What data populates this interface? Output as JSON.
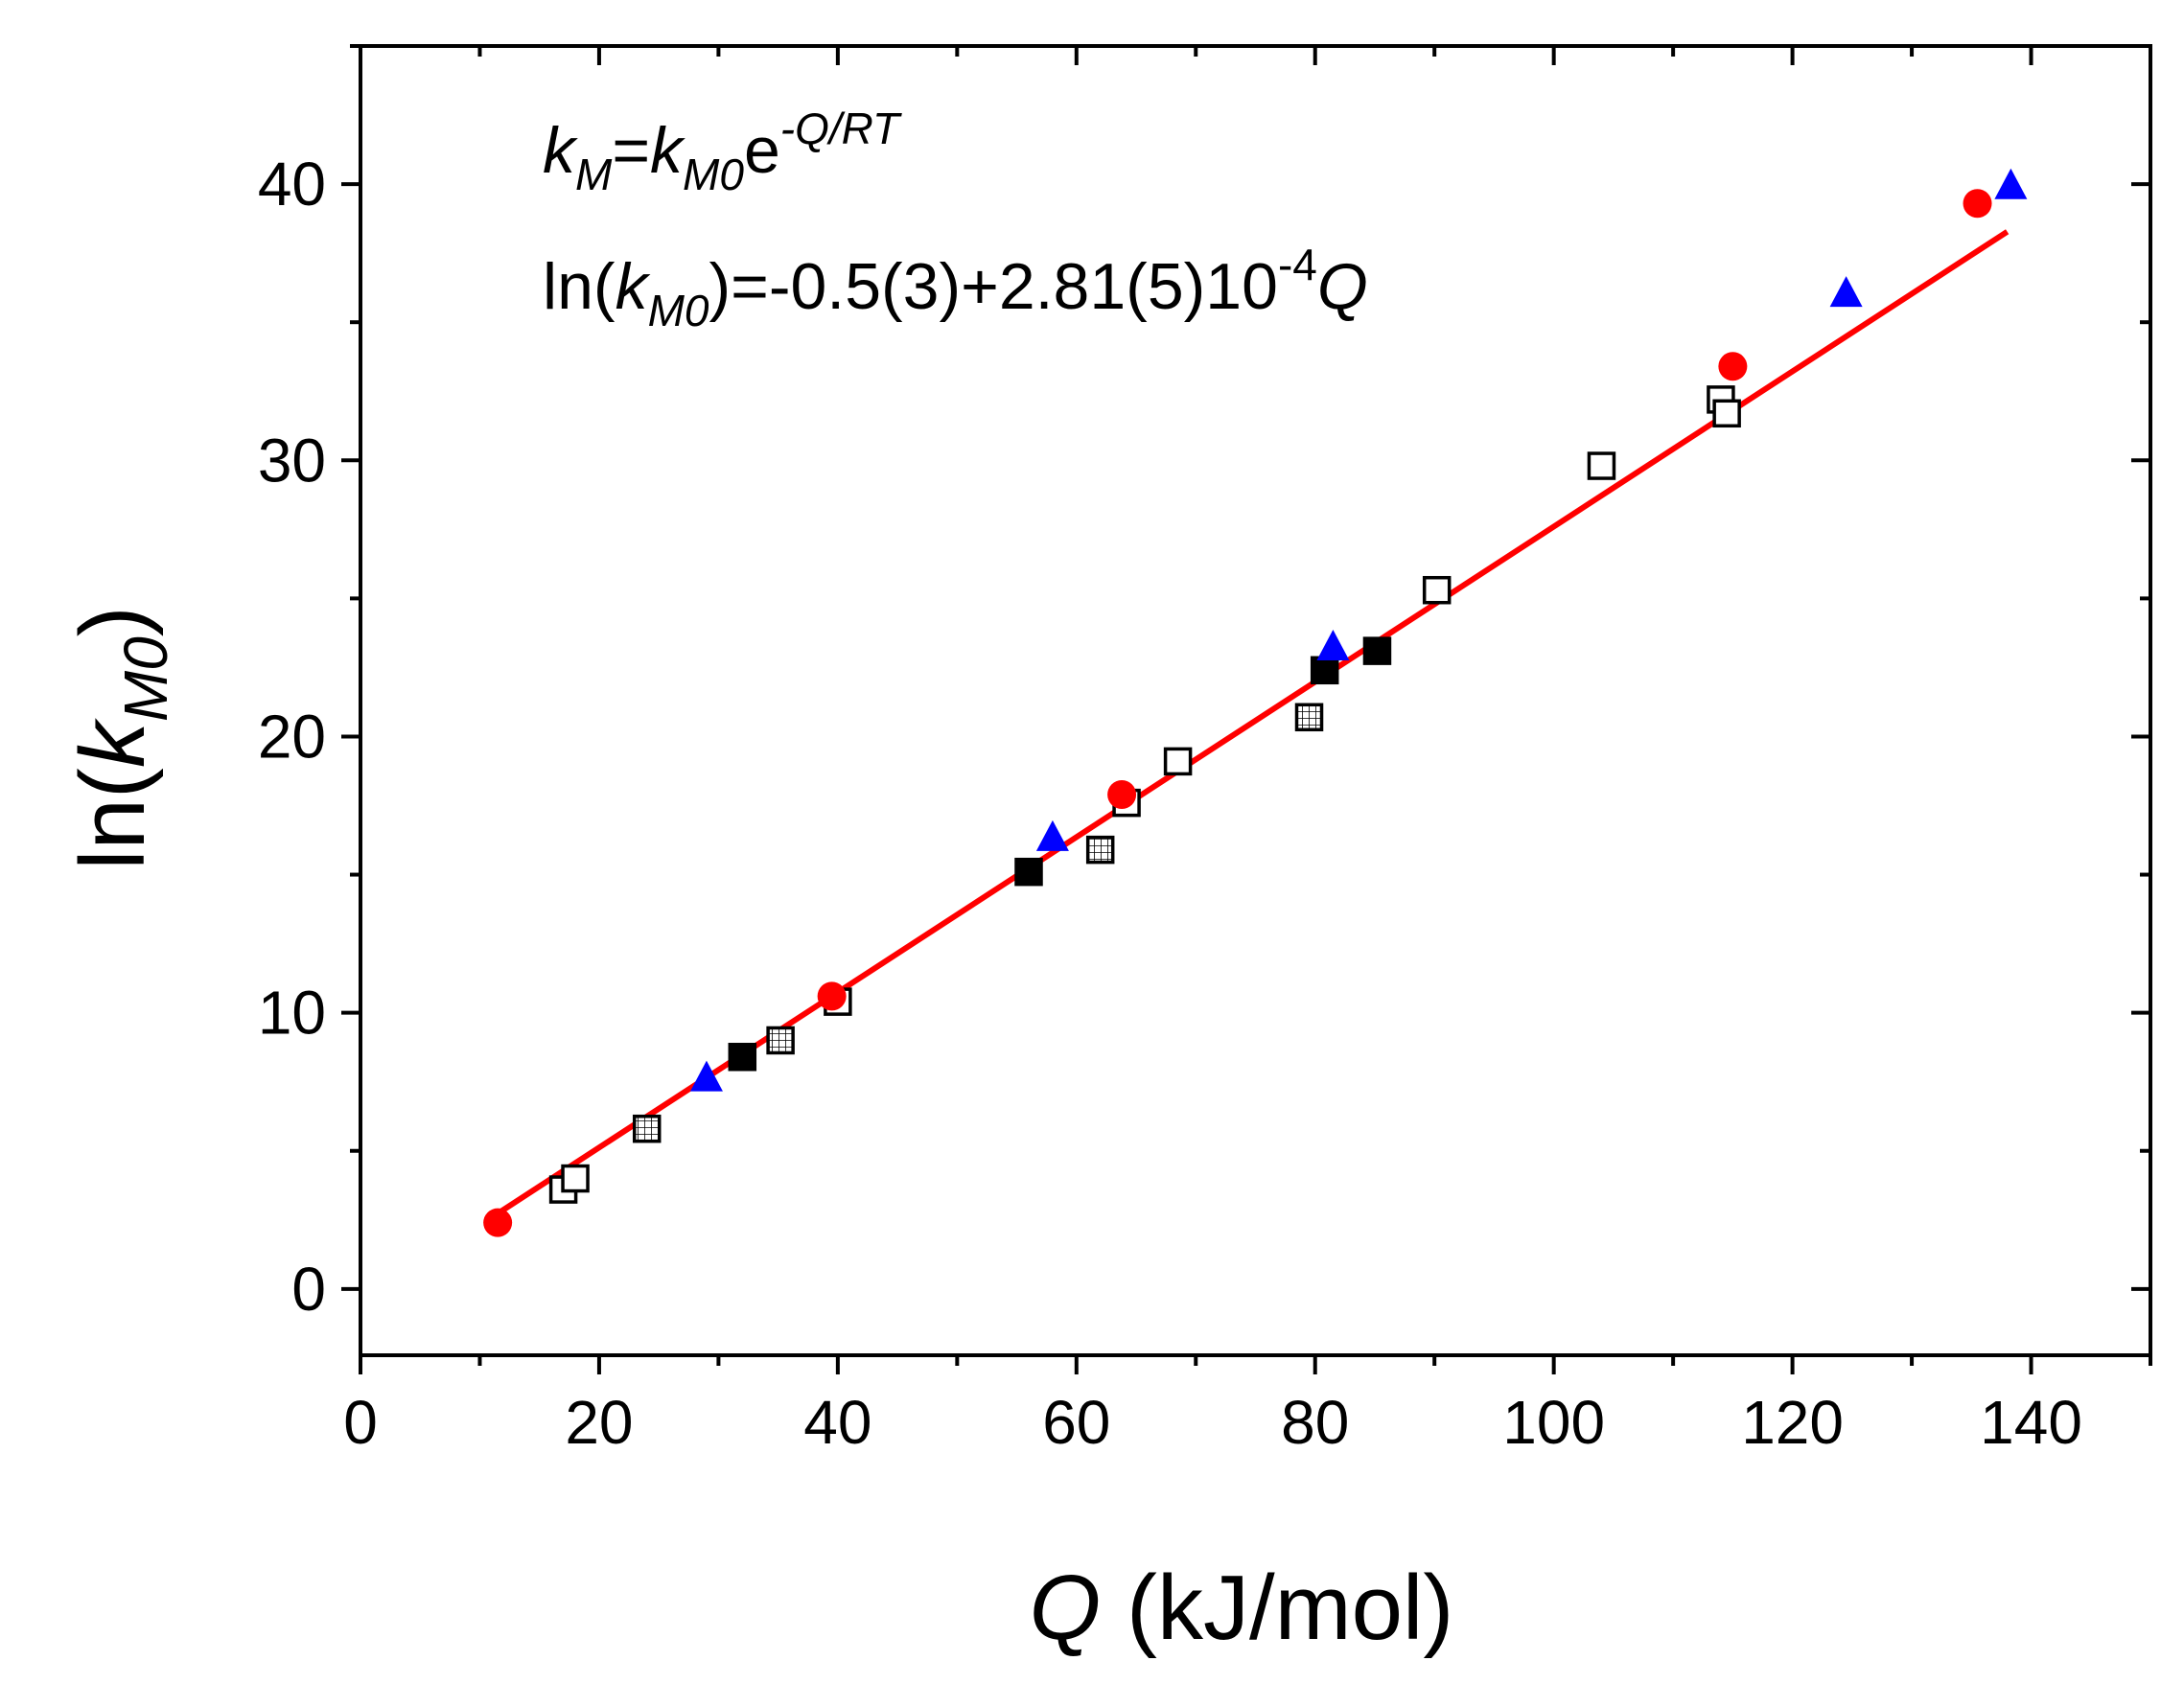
{
  "chart_data": {
    "type": "scatter",
    "title": "",
    "xlabel": {
      "italic": "Q",
      "rest": " (kJ/mol)"
    },
    "ylabel": {
      "prefix": "ln(",
      "italic": "k",
      "sub": "M0",
      "suffix": ")"
    },
    "xlim": [
      0,
      150
    ],
    "ylim": [
      -2.4,
      45
    ],
    "xticks": [
      0,
      20,
      40,
      60,
      80,
      100,
      120,
      140
    ],
    "yticks": [
      0,
      10,
      20,
      30,
      40
    ],
    "annotations": {
      "line1": {
        "k1": "k",
        "sub1": "M",
        "eq": "=",
        "k2": "k",
        "sub2": "M0",
        "e": "e",
        "exp": "-Q/RT"
      },
      "line2": {
        "prefix": "ln(",
        "k": "k",
        "sub": "M0",
        "mid": ")=-0.5(3)+2.81(5)10",
        "exp": "-4",
        "q": "Q"
      }
    },
    "fit": {
      "intercept": -0.5,
      "slope": 0.281,
      "x_range": [
        11,
        138
      ],
      "color": "#ff0000"
    },
    "series": [
      {
        "name": "red circles",
        "marker": "circle",
        "color": "#ff0000",
        "points": [
          [
            11.5,
            2.4
          ],
          [
            39.5,
            10.6
          ],
          [
            63.8,
            17.9
          ],
          [
            115.0,
            33.4
          ],
          [
            135.5,
            39.3
          ]
        ]
      },
      {
        "name": "blue triangles",
        "marker": "triangle",
        "color": "#0000ff",
        "points": [
          [
            29.0,
            7.6
          ],
          [
            58.0,
            16.3
          ],
          [
            81.5,
            23.2
          ],
          [
            124.5,
            36.0
          ],
          [
            138.3,
            39.9
          ]
        ]
      },
      {
        "name": "open squares",
        "marker": "square-open",
        "color": "#000000",
        "points": [
          [
            17.0,
            3.6
          ],
          [
            18.0,
            4.0
          ],
          [
            40.0,
            10.4
          ],
          [
            64.2,
            17.6
          ],
          [
            68.5,
            19.1
          ],
          [
            90.2,
            25.3
          ],
          [
            104.0,
            29.8
          ],
          [
            114.0,
            32.2
          ],
          [
            114.5,
            31.7
          ]
        ]
      },
      {
        "name": "filled squares",
        "marker": "square-filled",
        "color": "#000000",
        "points": [
          [
            32.0,
            8.4
          ],
          [
            56.0,
            15.1
          ],
          [
            80.8,
            22.4
          ],
          [
            85.2,
            23.1
          ]
        ]
      },
      {
        "name": "hatched squares",
        "marker": "square-hatched",
        "color": "#000000",
        "points": [
          [
            24.0,
            5.8
          ],
          [
            35.2,
            9.0
          ],
          [
            62.0,
            15.9
          ],
          [
            79.5,
            20.7
          ]
        ]
      }
    ]
  }
}
